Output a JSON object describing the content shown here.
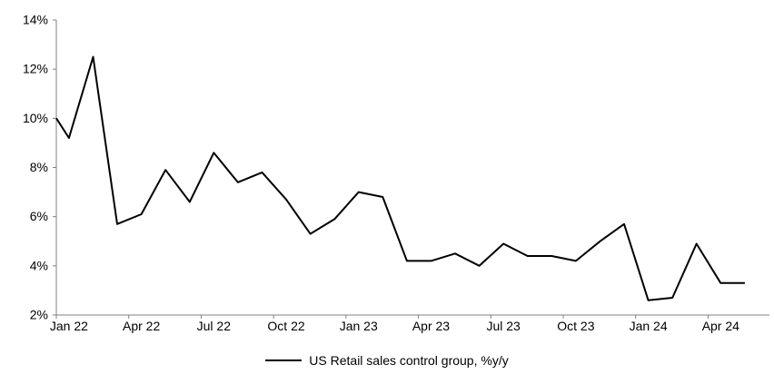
{
  "chart_data": {
    "type": "line",
    "title": "",
    "categories": [
      "Jan 22",
      "Feb 22",
      "Mar 22",
      "Apr 22",
      "May 22",
      "Jun 22",
      "Jul 22",
      "Aug 22",
      "Sep 22",
      "Oct 22",
      "Nov 22",
      "Dec 22",
      "Jan 23",
      "Feb 23",
      "Mar 23",
      "Apr 23",
      "May 23",
      "Jun 23",
      "Jul 23",
      "Aug 23",
      "Sep 23",
      "Oct 23",
      "Nov 23",
      "Dec 23",
      "Jan 24",
      "Feb 24",
      "Mar 24",
      "Apr 24",
      "May 24"
    ],
    "series": [
      {
        "name": "US Retail sales control group, %y/y",
        "color": "#000000",
        "values": [
          9.2,
          12.5,
          5.7,
          6.1,
          7.9,
          6.6,
          8.6,
          7.4,
          7.8,
          6.7,
          5.3,
          5.9,
          7.0,
          6.8,
          4.2,
          4.2,
          4.5,
          4.0,
          4.9,
          4.4,
          4.4,
          4.2,
          5.0,
          5.7,
          2.6,
          2.7,
          4.9,
          3.3,
          3.3
        ]
      }
    ],
    "axis_edge_entry_value": 10.0,
    "y_axis": {
      "min": 2,
      "max": 14,
      "step": 2,
      "tick_labels": [
        "14%",
        "12%",
        "10%",
        "8%",
        "6%",
        "4%",
        "2%"
      ]
    },
    "x_axis": {
      "tick_labels": [
        "Jan 22",
        "Apr 22",
        "Jul 22",
        "Oct 22",
        "Jan 23",
        "Apr 23",
        "Jul 23",
        "Oct 23",
        "Jan 24",
        "Apr 24"
      ],
      "label_interval_months": 3
    },
    "legend_position": "bottom-center",
    "grid": "none",
    "colors": {
      "line": "#000000",
      "axis": "#808080",
      "text": "#000000",
      "background": "#ffffff"
    }
  }
}
